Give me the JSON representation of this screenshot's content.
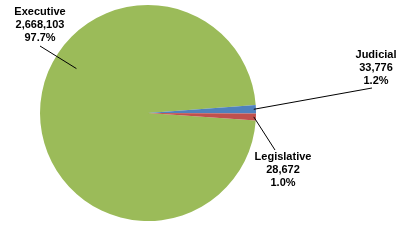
{
  "chart_data": {
    "type": "pie",
    "categories": [
      "Executive",
      "Judicial",
      "Legislative"
    ],
    "values": [
      2668103,
      33776,
      28672
    ],
    "value_labels": [
      "2,668,103",
      "33,776",
      "28,672"
    ],
    "percent_labels": [
      "97.7%",
      "1.2%",
      "1.0%"
    ],
    "colors": [
      "#9bbb59",
      "#4f81bd",
      "#c0504d"
    ],
    "data_labels": true,
    "legend": null
  }
}
